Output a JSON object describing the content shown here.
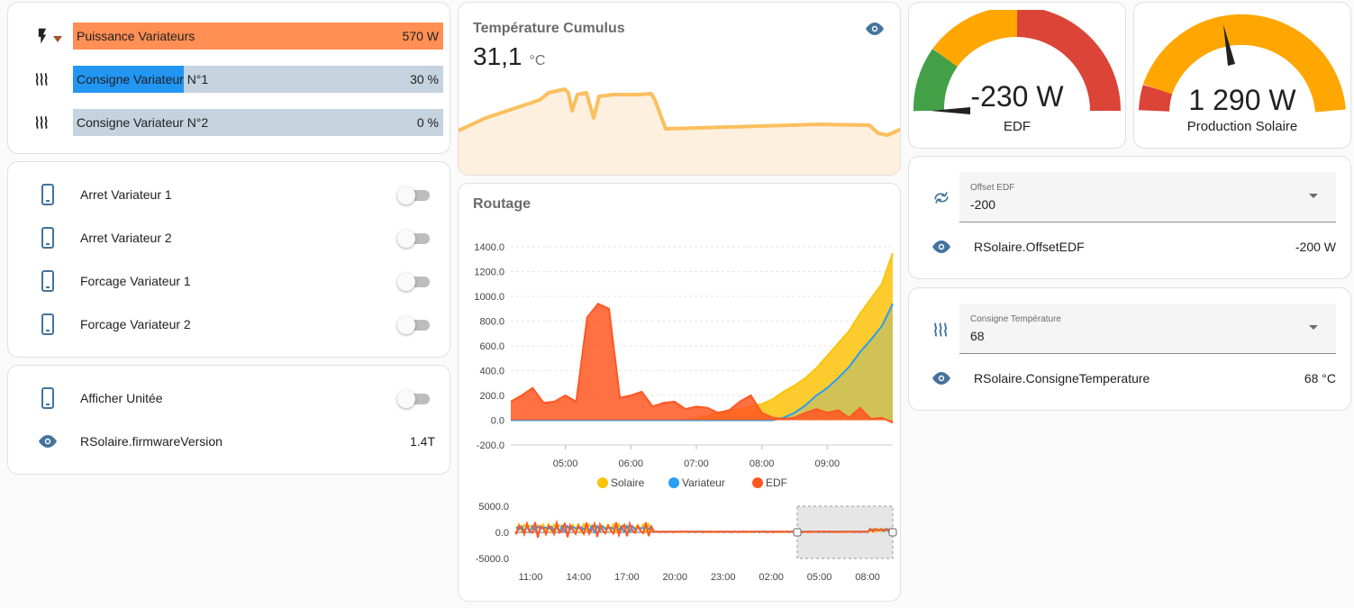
{
  "bars": [
    {
      "label": "Puissance Variateurs",
      "value": "570 W",
      "fill": 1.0,
      "color": "#ff8f55"
    },
    {
      "label": "Consigne Variateur N°1",
      "value": "30 %",
      "fill": 0.3,
      "color": "#2196f3"
    },
    {
      "label": "Consigne Variateur N°2",
      "value": "0 %",
      "fill": 0.0,
      "color": "#2196f3"
    }
  ],
  "switches": [
    {
      "label": "Arret Variateur 1"
    },
    {
      "label": "Arret Variateur 2"
    },
    {
      "label": "Forcage Variateur 1"
    },
    {
      "label": "Forcage Variateur 2"
    }
  ],
  "misc": {
    "afficher_label": "Afficher Unitée",
    "firmware_label": "RSolaire.firmwareVersion",
    "firmware_value": "1.4T"
  },
  "temperature": {
    "title": "Température Cumulus",
    "value": "31,1",
    "unit": "°C"
  },
  "routage": {
    "title": "Routage"
  },
  "gauges": {
    "edf": {
      "value": "-230 W",
      "label": "EDF"
    },
    "solar": {
      "value": "1 290 W",
      "label": "Production Solaire"
    }
  },
  "offset": {
    "select_label": "Offset EDF",
    "select_value": "-200",
    "entity_label": "RSolaire.OffsetEDF",
    "entity_value": "-200 W"
  },
  "consigne": {
    "select_label": "Consigne Température",
    "select_value": "68",
    "entity_label": "RSolaire.ConsigneTemperature",
    "entity_value": "68 °C"
  },
  "chart_data": {
    "type": "area",
    "title": "Routage",
    "x": [
      "04:10",
      "04:20",
      "04:30",
      "04:40",
      "04:50",
      "05:00",
      "05:10",
      "05:20",
      "05:30",
      "05:40",
      "05:50",
      "06:00",
      "06:10",
      "06:20",
      "06:30",
      "06:40",
      "06:50",
      "07:00",
      "07:10",
      "07:20",
      "07:30",
      "07:40",
      "07:50",
      "08:00",
      "08:10",
      "08:20",
      "08:30",
      "08:40",
      "08:50",
      "09:00",
      "09:10",
      "09:20",
      "09:30",
      "09:40",
      "09:50",
      "10:00"
    ],
    "x_ticks": [
      "05:00",
      "06:00",
      "07:00",
      "08:00",
      "09:00"
    ],
    "y_ticks": [
      "1400.0",
      "1200.0",
      "1000.0",
      "800.0",
      "600.0",
      "400.0",
      "200.0",
      "0.0",
      "-200.0"
    ],
    "ylim": [
      -200,
      1400
    ],
    "series": [
      {
        "name": "Solaire",
        "color": "#fbc30a",
        "values": [
          0,
          0,
          0,
          0,
          0,
          0,
          0,
          0,
          0,
          0,
          0,
          0,
          0,
          0,
          0,
          0,
          0,
          20,
          30,
          60,
          80,
          90,
          110,
          130,
          170,
          230,
          280,
          340,
          420,
          520,
          620,
          720,
          860,
          980,
          1100,
          1350
        ]
      },
      {
        "name": "Variateur",
        "color": "#2a9df4",
        "values": [
          0,
          0,
          0,
          0,
          0,
          0,
          0,
          0,
          0,
          0,
          0,
          0,
          0,
          0,
          0,
          0,
          0,
          0,
          0,
          0,
          0,
          0,
          0,
          0,
          0,
          20,
          60,
          120,
          200,
          260,
          340,
          430,
          550,
          650,
          760,
          940
        ]
      },
      {
        "name": "EDF",
        "color": "#ff5722",
        "values": [
          150,
          200,
          260,
          140,
          150,
          200,
          150,
          830,
          940,
          900,
          180,
          200,
          230,
          110,
          140,
          150,
          90,
          110,
          100,
          60,
          80,
          150,
          200,
          60,
          20,
          10,
          20,
          60,
          90,
          60,
          80,
          20,
          100,
          10,
          20,
          -20
        ]
      }
    ],
    "navigator": {
      "x_ticks": [
        "11:00",
        "14:00",
        "17:00",
        "20:00",
        "23:00",
        "02:00",
        "05:00",
        "08:00"
      ],
      "y_ticks": [
        "5000.0",
        "0.0",
        "-5000.0"
      ]
    }
  }
}
